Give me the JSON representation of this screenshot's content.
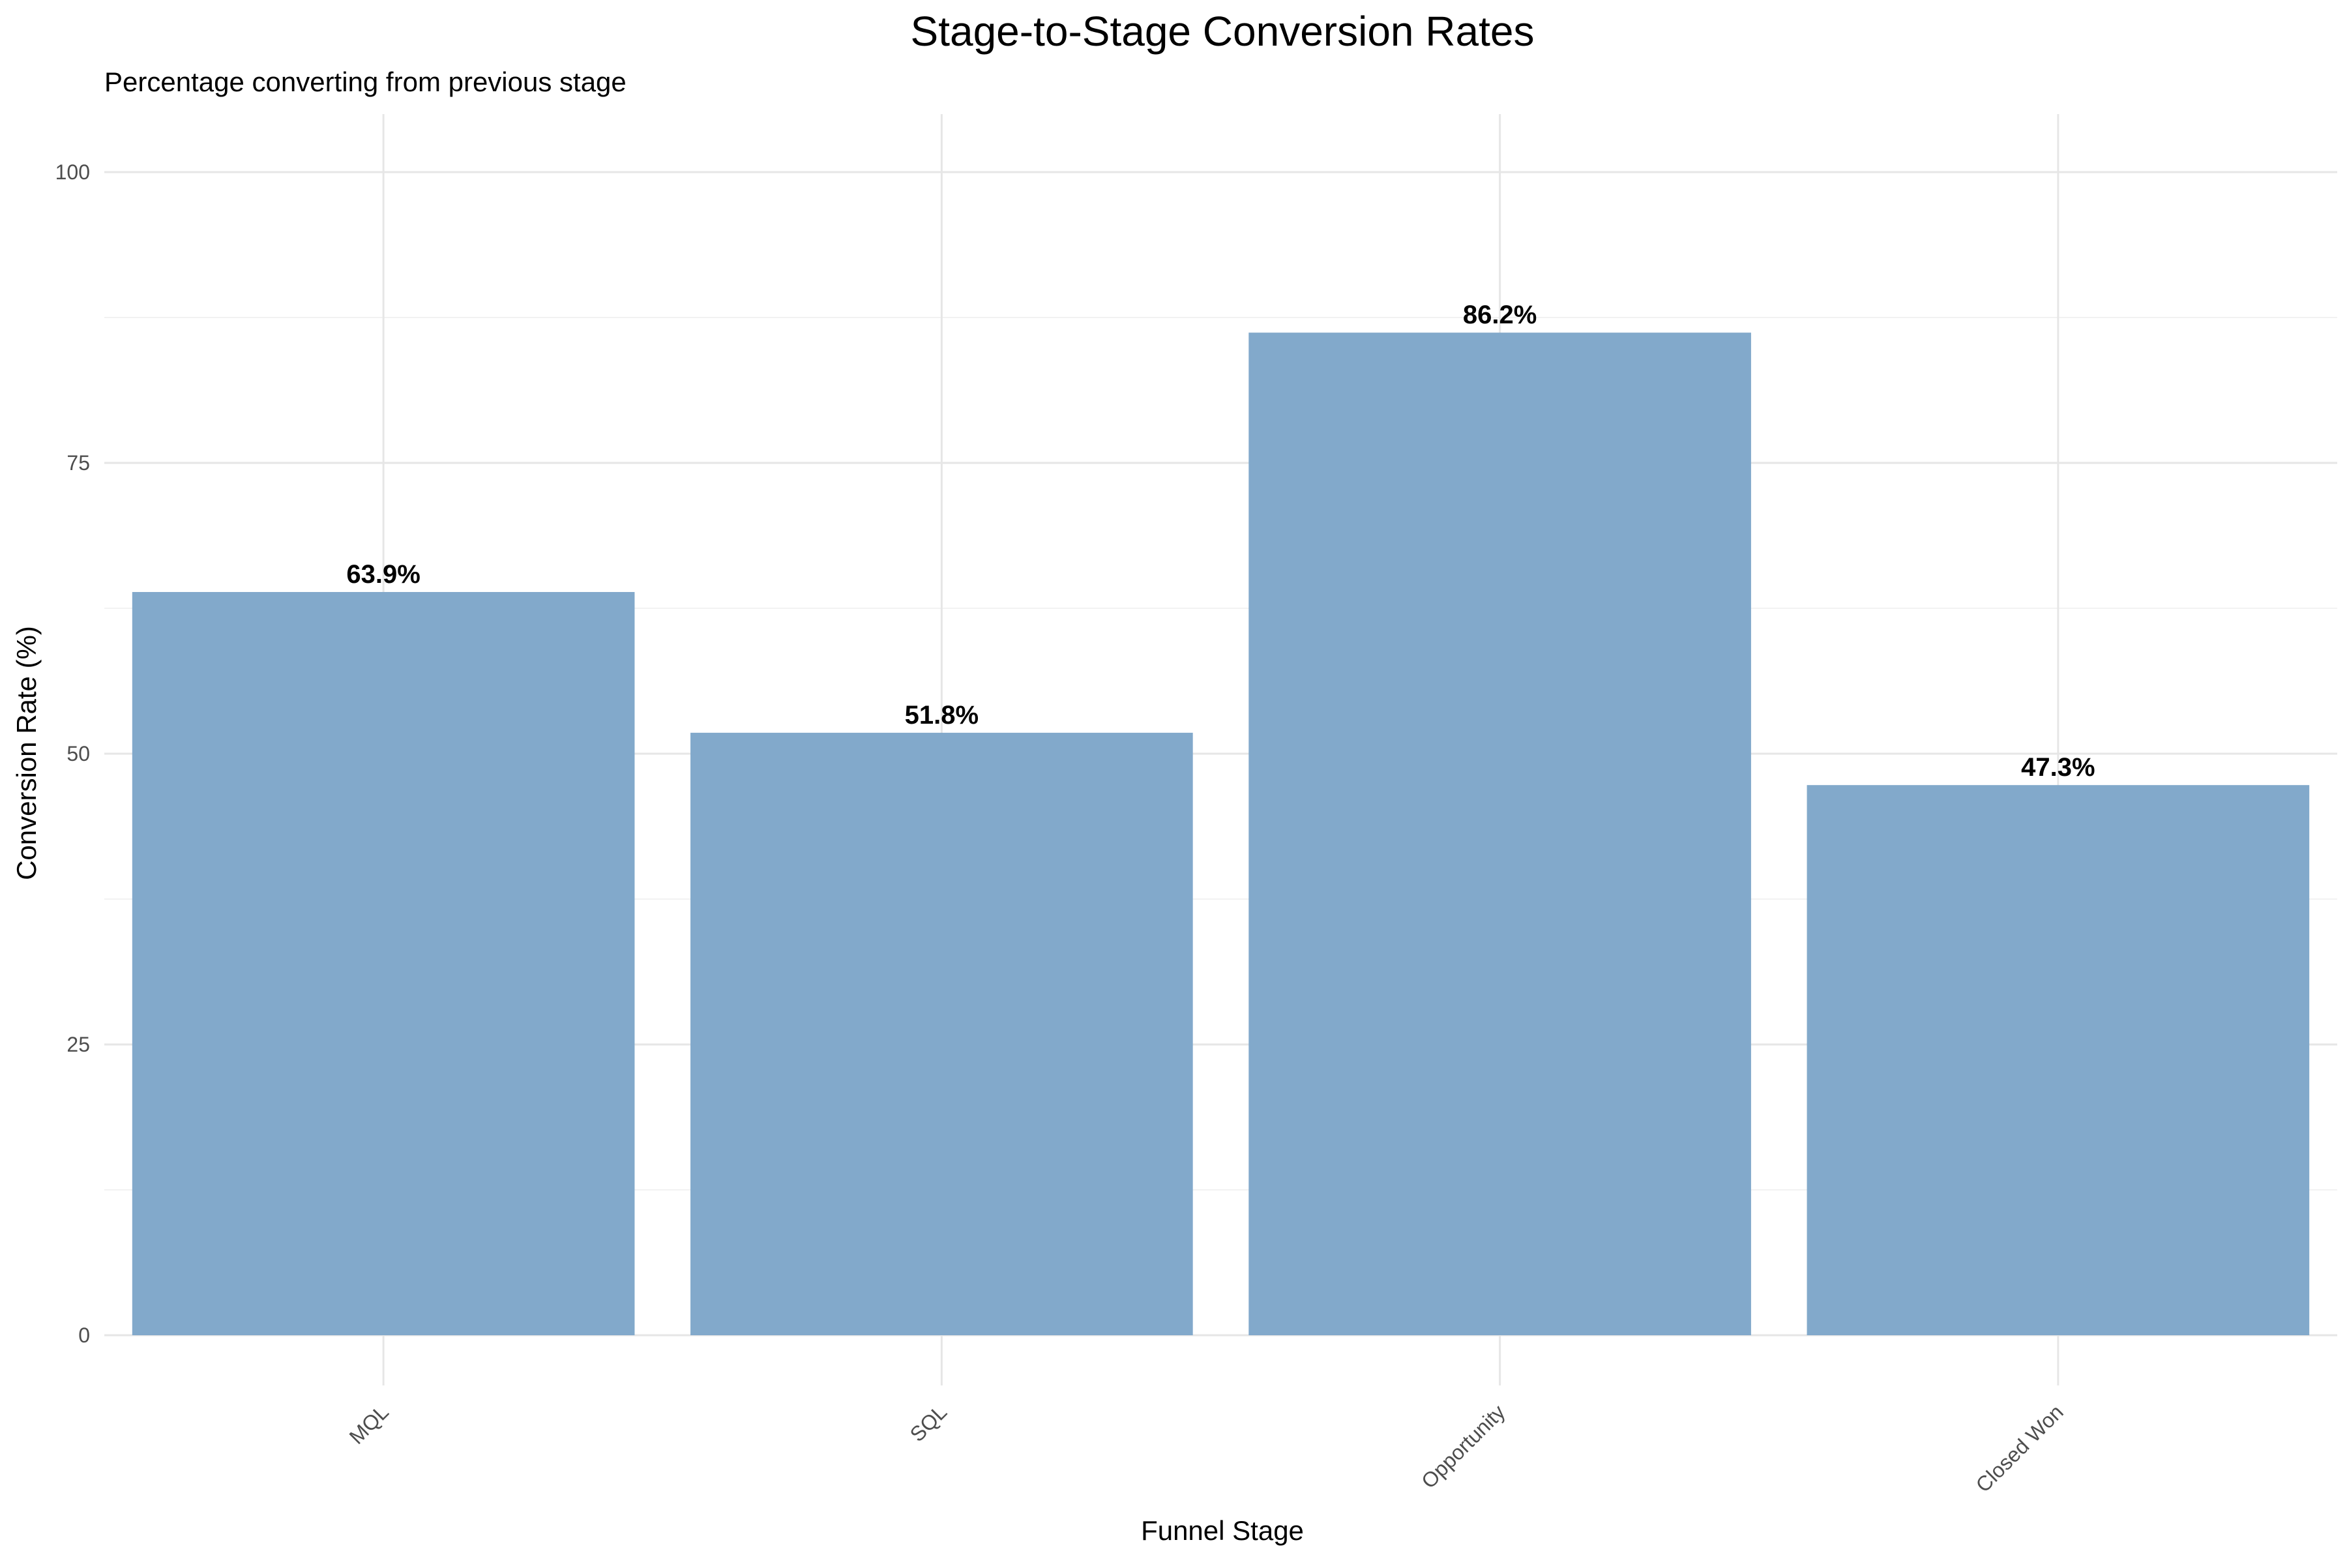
{
  "chart_data": {
    "type": "bar",
    "title": "Stage-to-Stage Conversion Rates",
    "subtitle": "Percentage converting from previous stage",
    "xlabel": "Funnel Stage",
    "ylabel": "Conversion Rate (%)",
    "categories": [
      "MQL",
      "SQL",
      "Opportunity",
      "Closed Won"
    ],
    "values": [
      63.9,
      51.8,
      86.2,
      47.3
    ],
    "value_labels": [
      "63.9%",
      "51.8%",
      "86.2%",
      "47.3%"
    ],
    "ylim": [
      0,
      100
    ],
    "yticks": [
      0,
      25,
      50,
      75,
      100
    ],
    "ytick_labels": [
      "0",
      "25",
      "50",
      "75",
      "100"
    ],
    "grid": true,
    "legend": "none",
    "bar_color": "#7fa7ca"
  }
}
